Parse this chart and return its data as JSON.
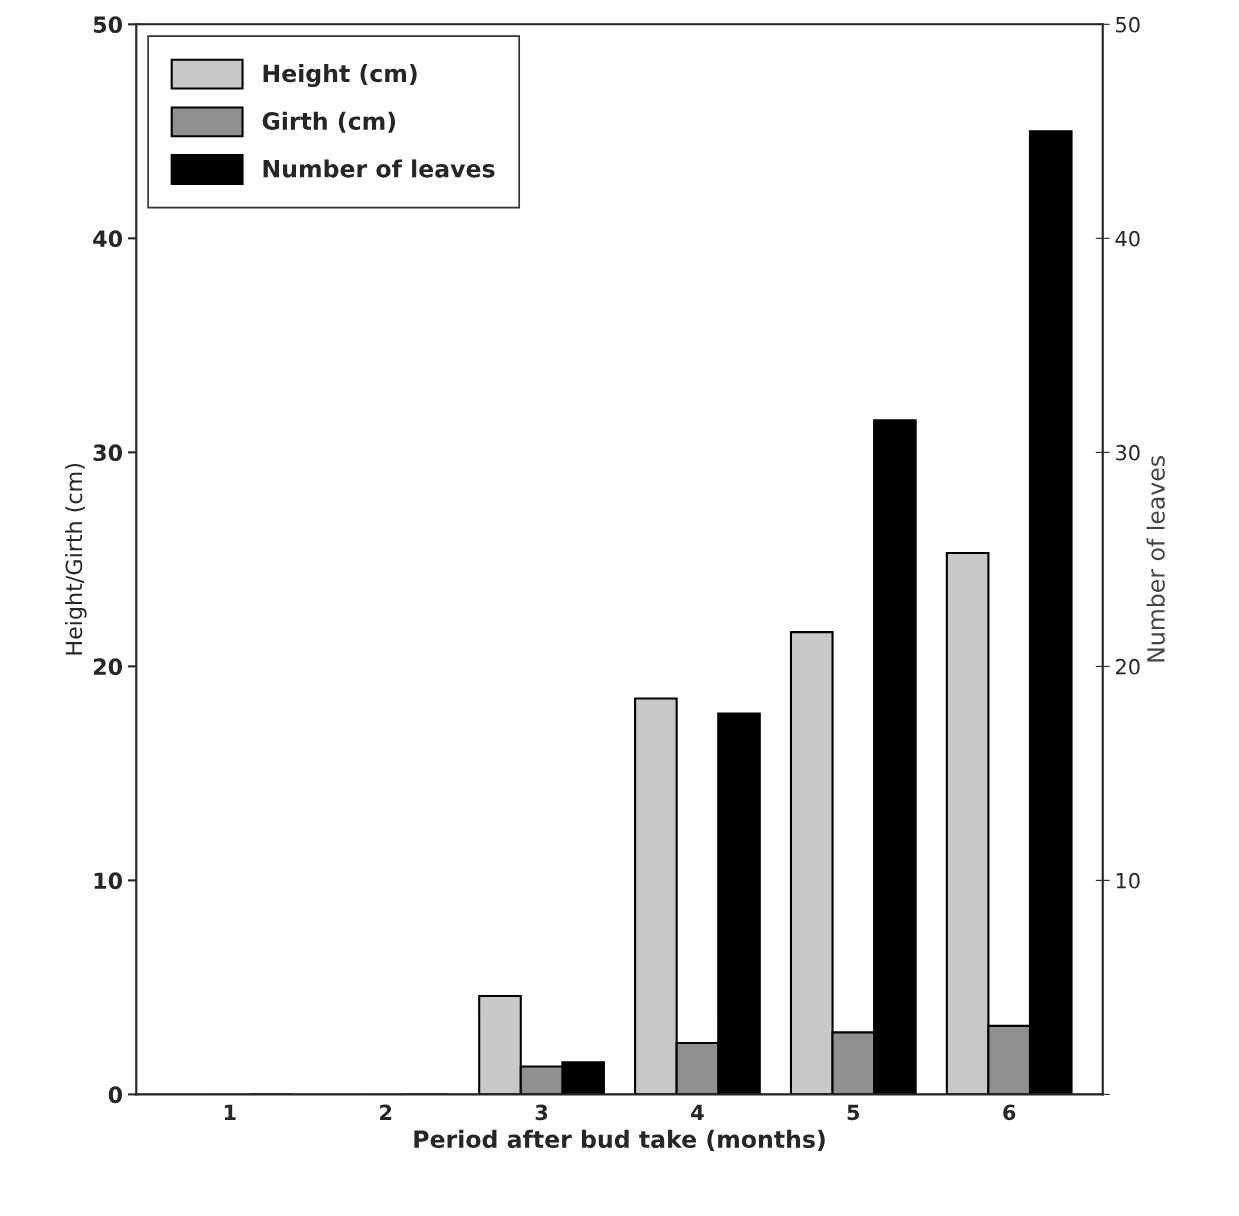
{
  "chart_data": {
    "type": "bar",
    "xlabel": "Period after bud take (months)",
    "ylabel": "Height/Girth (cm)",
    "y2label": "Number of leaves",
    "categories": [
      "1",
      "2",
      "3",
      "4",
      "5",
      "6"
    ],
    "series": [
      {
        "name": "Height (cm)",
        "color": "#c8c8c8",
        "values": [
          0,
          0,
          4.6,
          18.5,
          21.6,
          25.3
        ]
      },
      {
        "name": "Girth (cm)",
        "color": "#909090",
        "values": [
          0,
          0,
          1.3,
          2.4,
          2.9,
          3.2
        ]
      },
      {
        "name": "Number of leaves",
        "color": "#000000",
        "axis": "y2",
        "values": [
          0,
          0,
          1.5,
          17.8,
          31.5,
          45
        ]
      }
    ],
    "ylim": [
      0,
      50
    ],
    "yticks": [
      0,
      10,
      20,
      30,
      40,
      50
    ],
    "y2lim": [
      0,
      50
    ],
    "y2ticks": [
      {
        "value": 0,
        "label": null
      },
      10,
      20,
      30,
      40,
      50
    ],
    "legend": "top left",
    "grid": false
  }
}
